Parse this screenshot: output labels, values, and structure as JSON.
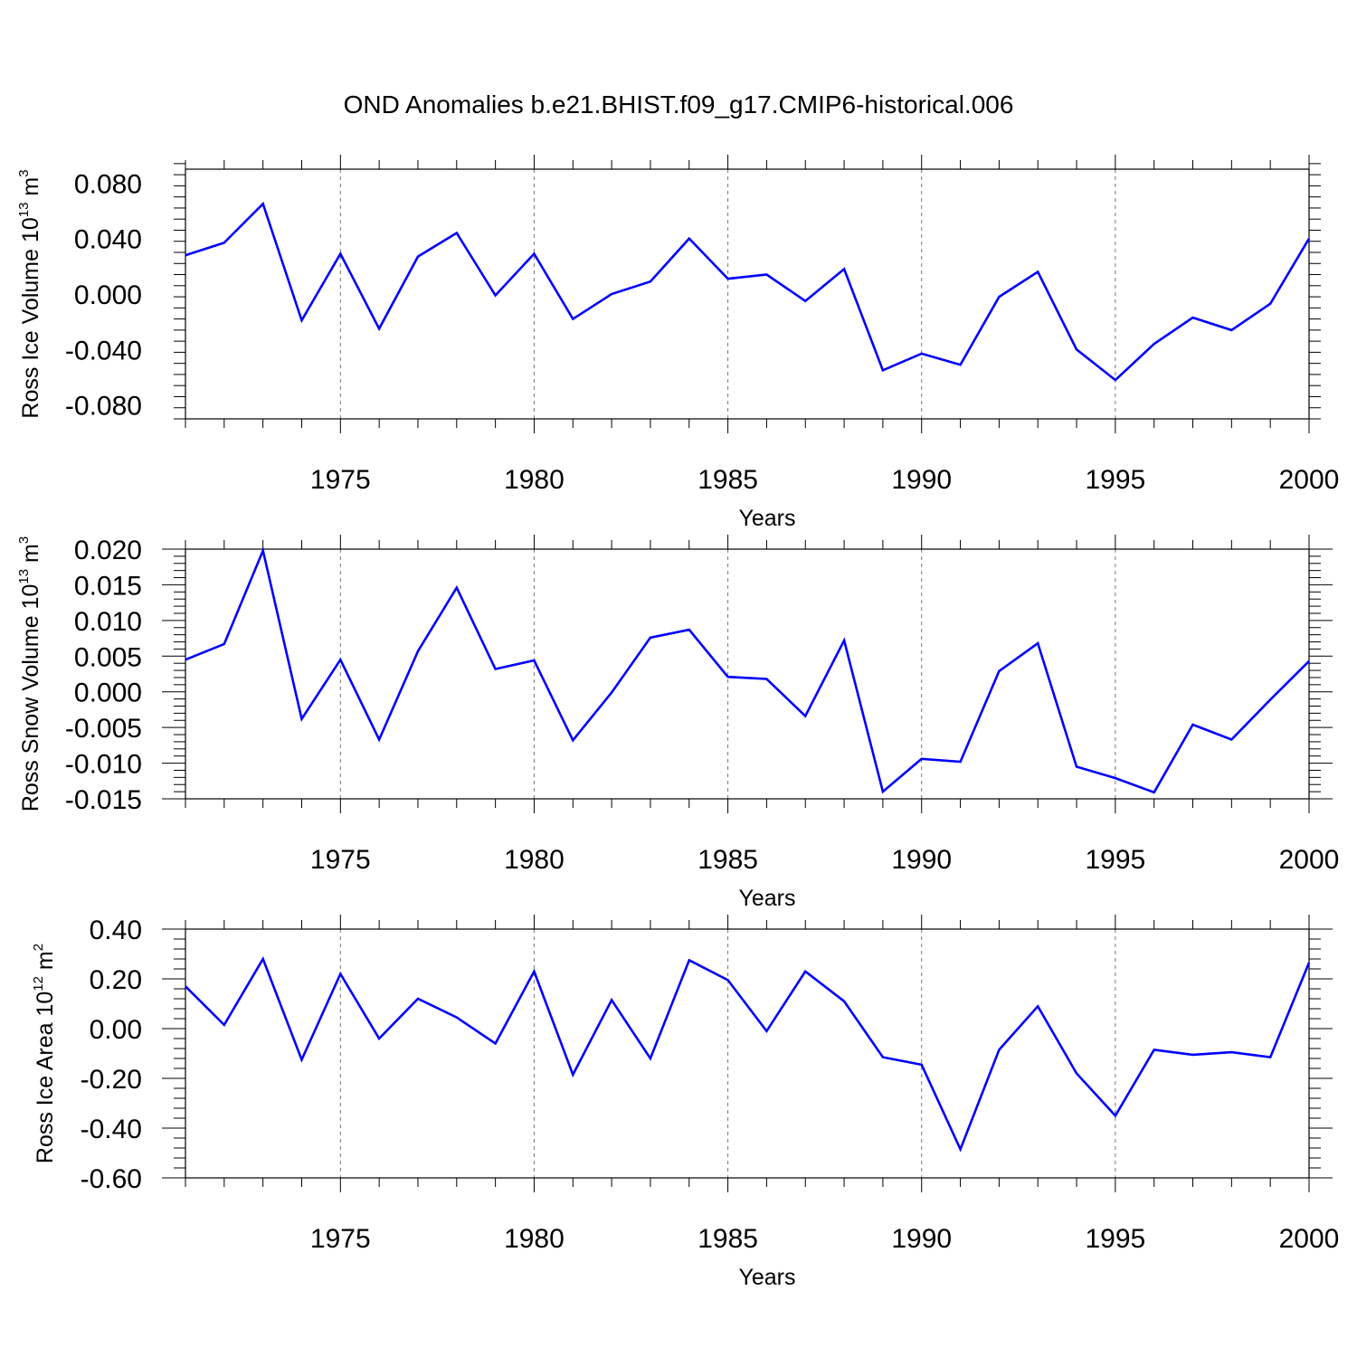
{
  "figure": {
    "title": "OND Anomalies b.e21.BHIST.f09_g17.CMIP6-historical.006",
    "line_color": "#0000ff"
  },
  "chart_data": [
    {
      "type": "line",
      "ylabel": "Ross Ice Volume 10",
      "ylabel_exp": "13",
      "ylabel_unit": "m",
      "ylabel_unit_exp": "3",
      "xlabel": "Years",
      "xlim": [
        1971,
        2000
      ],
      "ylim": [
        -0.09,
        0.09
      ],
      "xticks": [
        1975,
        1980,
        1985,
        1990,
        1995,
        2000
      ],
      "xtick_labels": [
        "1975",
        "1980",
        "1985",
        "1990",
        "1995",
        "2000"
      ],
      "yticks": [
        0.08,
        0.04,
        0.0,
        -0.04,
        -0.08
      ],
      "ytick_labels": [
        "0.080",
        "0.040",
        "0.000",
        "-0.040",
        "-0.080"
      ],
      "grid": "vertical dashed at major x ticks",
      "x": [
        1971,
        1972,
        1973,
        1974,
        1975,
        1976,
        1977,
        1978,
        1979,
        1980,
        1981,
        1982,
        1983,
        1984,
        1985,
        1986,
        1987,
        1988,
        1989,
        1990,
        1991,
        1992,
        1993,
        1994,
        1995,
        1996,
        1997,
        1998,
        1999,
        2000
      ],
      "values": [
        0.028,
        0.037,
        0.065,
        -0.019,
        0.029,
        -0.025,
        0.027,
        0.044,
        -0.001,
        0.029,
        -0.018,
        0.0,
        0.009,
        0.04,
        0.011,
        0.014,
        -0.005,
        0.018,
        -0.055,
        -0.043,
        -0.051,
        -0.002,
        0.016,
        -0.04,
        -0.062,
        -0.036,
        -0.017,
        -0.026,
        -0.007,
        0.04
      ]
    },
    {
      "type": "line",
      "ylabel": "Ross Snow Volume 10",
      "ylabel_exp": "13",
      "ylabel_unit": "m",
      "ylabel_unit_exp": "3",
      "xlabel": "Years",
      "xlim": [
        1971,
        2000
      ],
      "ylim": [
        -0.015,
        0.02
      ],
      "xticks": [
        1975,
        1980,
        1985,
        1990,
        1995,
        2000
      ],
      "xtick_labels": [
        "1975",
        "1980",
        "1985",
        "1990",
        "1995",
        "2000"
      ],
      "yticks": [
        0.02,
        0.015,
        0.01,
        0.005,
        0.0,
        -0.005,
        -0.01,
        -0.015
      ],
      "ytick_labels": [
        "0.020",
        "0.015",
        "0.010",
        "0.005",
        "0.000",
        "-0.005",
        "-0.010",
        "-0.015"
      ],
      "grid": "vertical dashed at major x ticks",
      "x": [
        1971,
        1972,
        1973,
        1974,
        1975,
        1976,
        1977,
        1978,
        1979,
        1980,
        1981,
        1982,
        1983,
        1984,
        1985,
        1986,
        1987,
        1988,
        1989,
        1990,
        1991,
        1992,
        1993,
        1994,
        1995,
        1996,
        1997,
        1998,
        1999,
        2000
      ],
      "values": [
        0.0045,
        0.0067,
        0.0198,
        -0.0038,
        0.0045,
        -0.0067,
        0.0057,
        0.0146,
        0.0032,
        0.0044,
        -0.0068,
        -0.0001,
        0.0076,
        0.0087,
        0.0021,
        0.0018,
        -0.0034,
        0.0072,
        -0.014,
        -0.0094,
        -0.0098,
        0.0029,
        0.0068,
        -0.0105,
        -0.0121,
        -0.0141,
        -0.0046,
        -0.0067,
        -0.0011,
        0.0043
      ]
    },
    {
      "type": "line",
      "ylabel": "Ross Ice Area 10",
      "ylabel_exp": "12",
      "ylabel_unit": "m",
      "ylabel_unit_exp": "2",
      "xlabel": "Years",
      "xlim": [
        1971,
        2000
      ],
      "ylim": [
        -0.6,
        0.4
      ],
      "xticks": [
        1975,
        1980,
        1985,
        1990,
        1995,
        2000
      ],
      "xtick_labels": [
        "1975",
        "1980",
        "1985",
        "1990",
        "1995",
        "2000"
      ],
      "yticks": [
        0.4,
        0.2,
        0.0,
        -0.2,
        -0.4,
        -0.6
      ],
      "ytick_labels": [
        "0.40",
        "0.20",
        "0.00",
        "-0.20",
        "-0.40",
        "-0.60"
      ],
      "grid": "vertical dashed at major x ticks",
      "x": [
        1971,
        1972,
        1973,
        1974,
        1975,
        1976,
        1977,
        1978,
        1979,
        1980,
        1981,
        1982,
        1983,
        1984,
        1985,
        1986,
        1987,
        1988,
        1989,
        1990,
        1991,
        1992,
        1993,
        1994,
        1995,
        1996,
        1997,
        1998,
        1999,
        2000
      ],
      "values": [
        0.17,
        0.015,
        0.28,
        -0.125,
        0.22,
        -0.04,
        0.12,
        0.045,
        -0.06,
        0.23,
        -0.185,
        0.115,
        -0.12,
        0.275,
        0.195,
        -0.01,
        0.23,
        0.11,
        -0.115,
        -0.145,
        -0.485,
        -0.085,
        0.09,
        -0.18,
        -0.35,
        -0.085,
        -0.105,
        -0.095,
        -0.115,
        0.265
      ]
    }
  ]
}
